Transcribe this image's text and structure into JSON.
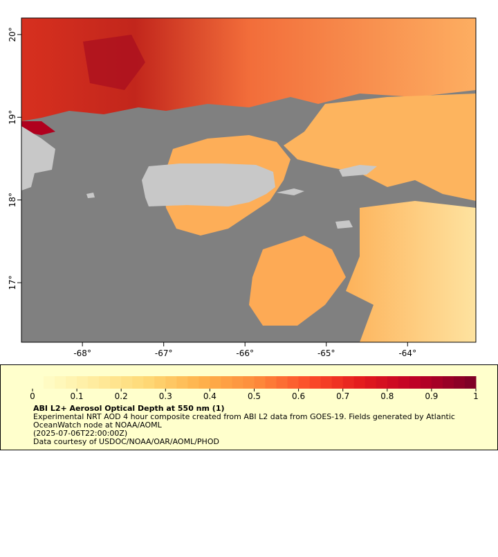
{
  "map": {
    "xlim": [
      -68.75,
      -63.16
    ],
    "ylim": [
      16.28,
      20.2
    ],
    "xticks": [
      {
        "value": -68,
        "label": "-68°"
      },
      {
        "value": -67,
        "label": "-67°"
      },
      {
        "value": -66,
        "label": "-66°"
      },
      {
        "value": -65,
        "label": "-65°"
      },
      {
        "value": -64,
        "label": "-64°"
      }
    ],
    "yticks": [
      {
        "value": 17,
        "label": "17°"
      },
      {
        "value": 18,
        "label": "18°"
      },
      {
        "value": 19,
        "label": "19°"
      },
      {
        "value": 20,
        "label": "20°"
      }
    ]
  },
  "colorbar": {
    "range": [
      0,
      1
    ],
    "ticks": [
      0,
      0.1,
      0.2,
      0.3,
      0.4,
      0.5,
      0.6,
      0.7,
      0.8,
      0.9,
      1
    ],
    "colors": [
      "#ffffcc",
      "#ffeda0",
      "#fed976",
      "#feb24c",
      "#fd8d3c",
      "#fc4e2a",
      "#e31a1c",
      "#bd0026",
      "#800026"
    ]
  },
  "legend": {
    "title": "ABI L2+ Aerosol Optical Depth at 550 nm (1)",
    "lines": [
      "Experimental NRT AOD 4 hour composite created from ABI L2 data from GOES-19. Fields generated by Atlantic",
      "OceanWatch node at NOAA/AOML",
      "(2025-07-06T22:00:00Z)",
      "Data courtesy of USDOC/NOAA/OAR/AOML/PHOD"
    ]
  }
}
